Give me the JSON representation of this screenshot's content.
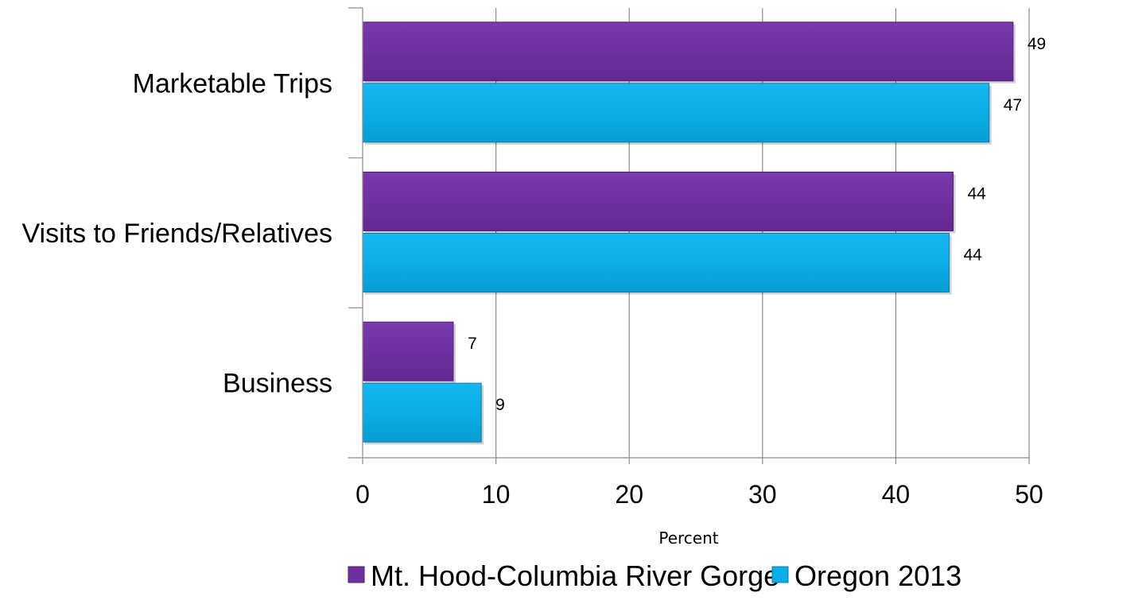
{
  "chart_data": {
    "type": "bar",
    "orientation": "horizontal",
    "categories": [
      "Marketable Trips",
      "Visits to Friends/Relatives",
      "Business"
    ],
    "series": [
      {
        "name": "Mt. Hood-Columbia River Gorge",
        "values": [
          49,
          44,
          7
        ],
        "plotted_values": [
          48.8,
          44.3,
          6.8
        ],
        "color": "#7030a0"
      },
      {
        "name": "Oregon 2013",
        "values": [
          47,
          44,
          9
        ],
        "plotted_values": [
          47.0,
          44.0,
          8.9
        ],
        "color": "#0aaee8"
      }
    ],
    "xlabel": "Percent",
    "ylabel": "",
    "xlim": [
      0,
      50
    ],
    "xticks": [
      "0",
      "10",
      "20",
      "30",
      "40",
      "50"
    ],
    "grid": true,
    "legend": "bottom"
  }
}
